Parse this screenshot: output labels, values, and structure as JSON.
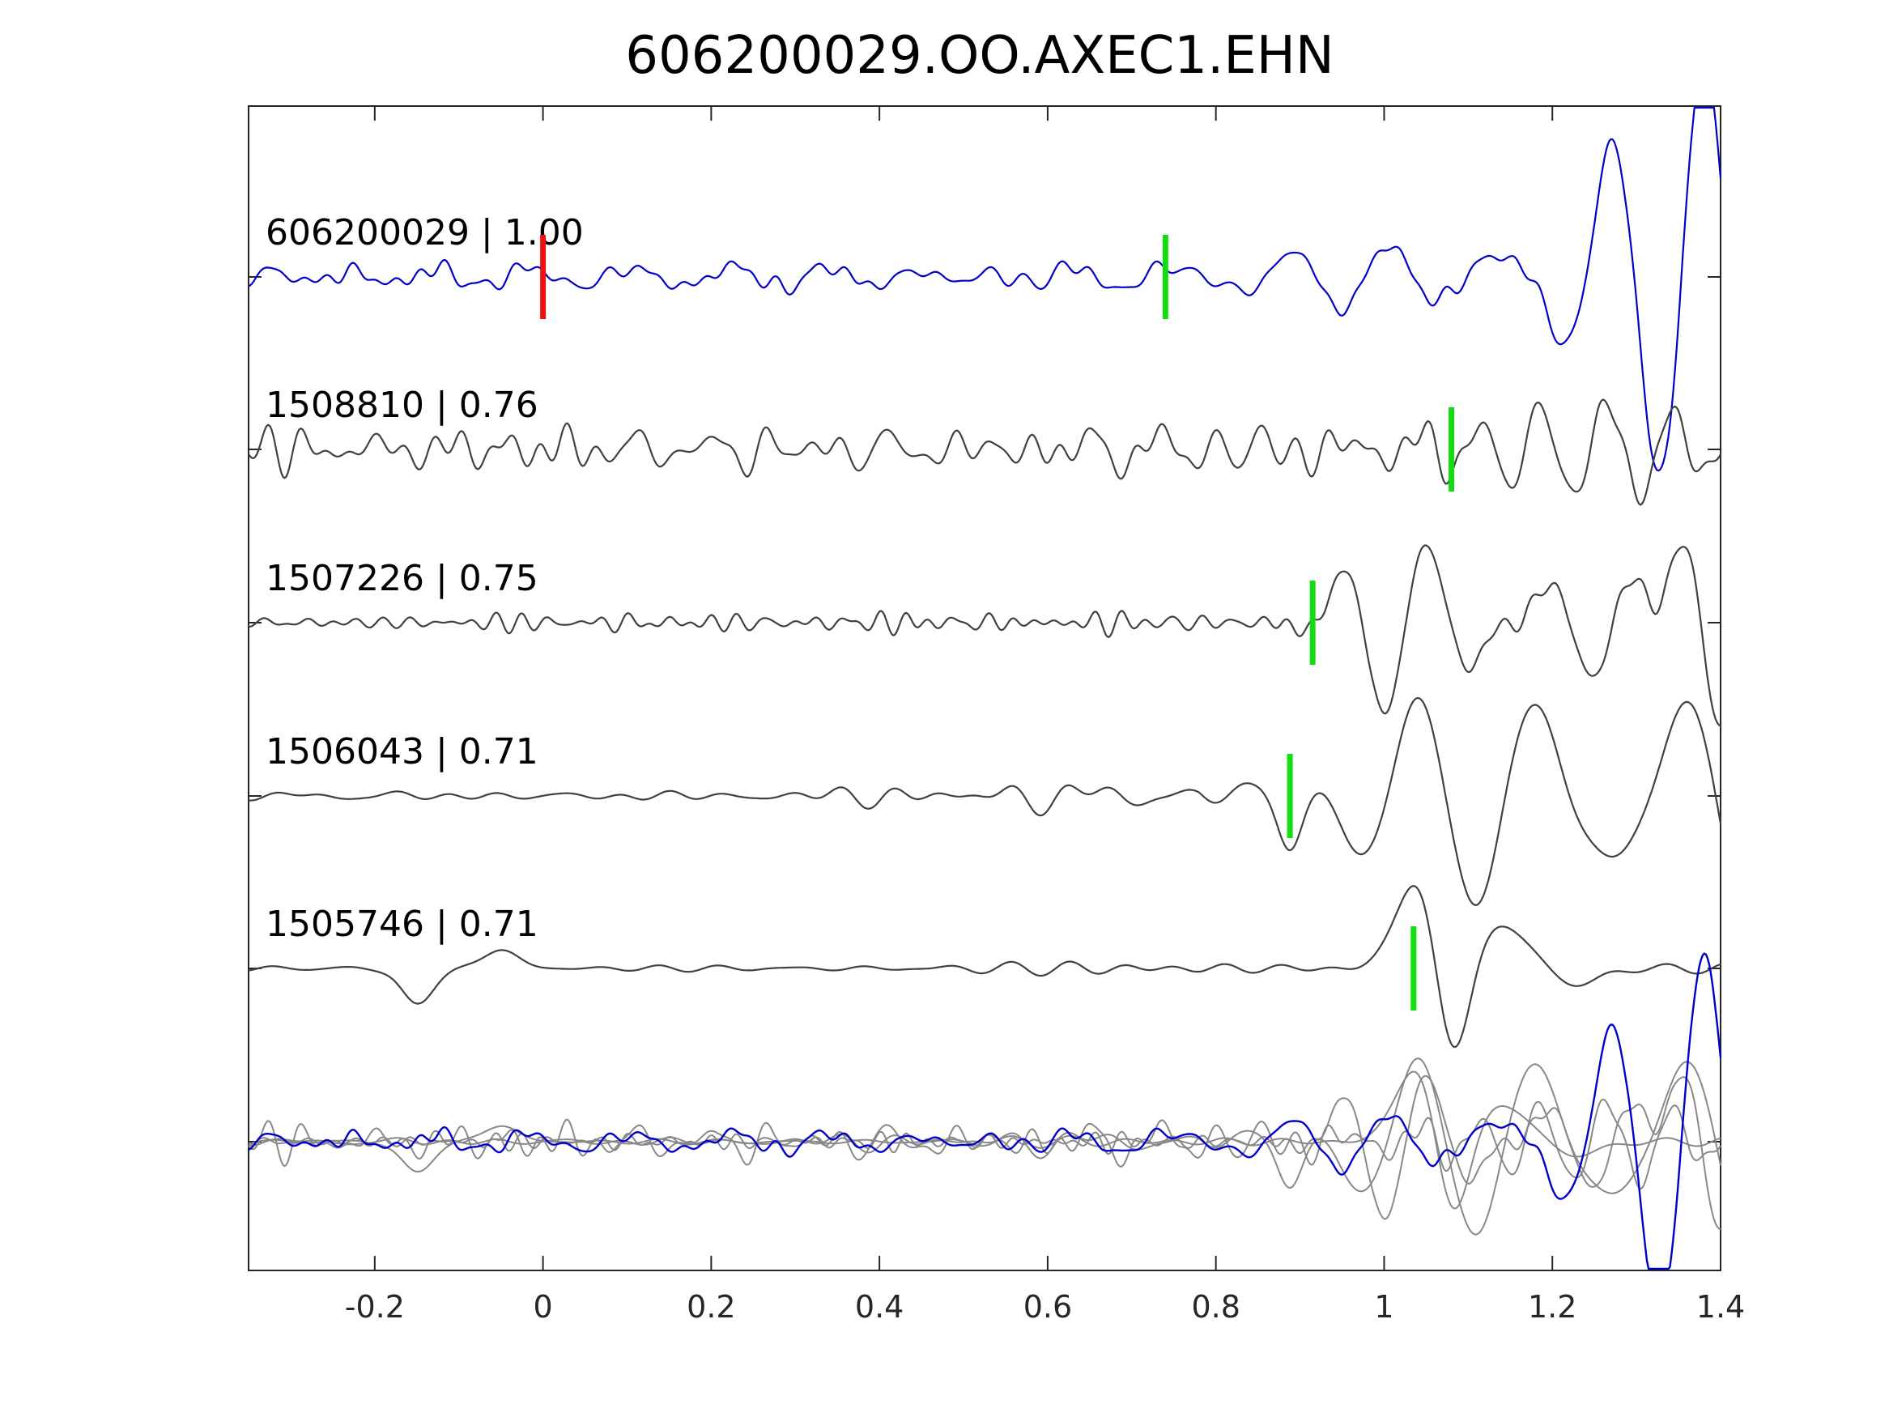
{
  "chart_data": {
    "type": "line",
    "title": "606200029.OO.AXEC1.EHN",
    "xlabel": "",
    "ylabel": "",
    "xlim": [
      -0.35,
      1.4
    ],
    "xticks": [
      -0.2,
      0,
      0.2,
      0.4,
      0.6,
      0.8,
      1,
      1.2,
      1.4
    ],
    "xtick_labels": [
      "-0.2",
      "0",
      "0.2",
      "0.4",
      "0.6",
      "0.8",
      "1",
      "1.2",
      "1.4"
    ],
    "grid": false,
    "colors": {
      "template": "#0000cc",
      "match": "#404040",
      "overlay_match": "#888888",
      "pick_origin": "#ee1111",
      "pick_phase": "#11dd11"
    },
    "traces": [
      {
        "label": "606200029 | 1.00",
        "id": "606200029",
        "cc": 1.0,
        "color_role": "template",
        "pick_time": 0.74,
        "origin_pick": 0.0
      },
      {
        "label": "1508810 | 0.76",
        "id": "1508810",
        "cc": 0.76,
        "color_role": "match",
        "pick_time": 1.08
      },
      {
        "label": "1507226 | 0.75",
        "id": "1507226",
        "cc": 0.75,
        "color_role": "match",
        "pick_time": 0.915
      },
      {
        "label": "1506043 | 0.71",
        "id": "1506043",
        "cc": 0.71,
        "color_role": "match",
        "pick_time": 0.888
      },
      {
        "label": "1505746 | 0.71",
        "id": "1505746",
        "cc": 0.71,
        "color_role": "match",
        "pick_time": 1.035
      }
    ],
    "overlay": {
      "present": true,
      "description_role": "stacked traces"
    }
  }
}
